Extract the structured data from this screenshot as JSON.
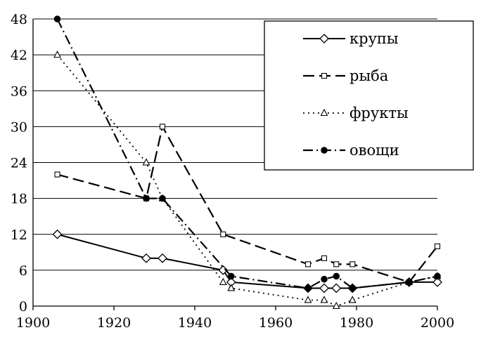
{
  "chart_data": {
    "type": "line",
    "x_ticks": [
      1900,
      1920,
      1940,
      1960,
      1980,
      2000
    ],
    "y_ticks": [
      0,
      6,
      12,
      18,
      24,
      30,
      36,
      42,
      48
    ],
    "xlim": [
      1900,
      2000
    ],
    "ylim": [
      0,
      48
    ],
    "grid": "horizontal",
    "legend_position": "top-right",
    "series": [
      {
        "name": "крупы",
        "color": "#000000",
        "dash": "solid",
        "marker": "diamond",
        "points": [
          [
            1906,
            12
          ],
          [
            1928,
            8
          ],
          [
            1932,
            8
          ],
          [
            1947,
            6
          ],
          [
            1949,
            4
          ],
          [
            1968,
            3
          ],
          [
            1972,
            3
          ],
          [
            1975,
            3
          ],
          [
            1979,
            3
          ],
          [
            1993,
            4
          ],
          [
            2000,
            4
          ]
        ]
      },
      {
        "name": "рыба",
        "color": "#000000",
        "dash": "long-dash",
        "marker": "square-open",
        "points": [
          [
            1906,
            22
          ],
          [
            1928,
            18
          ],
          [
            1932,
            30
          ],
          [
            1947,
            12
          ],
          [
            1968,
            7
          ],
          [
            1972,
            8
          ],
          [
            1975,
            7
          ],
          [
            1979,
            7
          ],
          [
            1993,
            4
          ],
          [
            2000,
            10
          ]
        ]
      },
      {
        "name": "фрукты",
        "color": "#000000",
        "dash": "dotted",
        "marker": "triangle-open",
        "points": [
          [
            1906,
            42
          ],
          [
            1928,
            24
          ],
          [
            1932,
            18
          ],
          [
            1947,
            4
          ],
          [
            1949,
            3
          ],
          [
            1968,
            1
          ],
          [
            1972,
            1
          ],
          [
            1975,
            0
          ],
          [
            1979,
            1
          ],
          [
            1993,
            4
          ],
          [
            2000,
            5
          ]
        ]
      },
      {
        "name": "овощи",
        "color": "#000000",
        "dash": "dash-dot",
        "marker": "circle-filled",
        "points": [
          [
            1906,
            48
          ],
          [
            1928,
            18
          ],
          [
            1932,
            18
          ],
          [
            1949,
            5
          ],
          [
            1968,
            3
          ],
          [
            1972,
            4.5
          ],
          [
            1975,
            5
          ],
          [
            1979,
            3
          ],
          [
            1993,
            4
          ],
          [
            2000,
            5
          ]
        ]
      }
    ]
  }
}
